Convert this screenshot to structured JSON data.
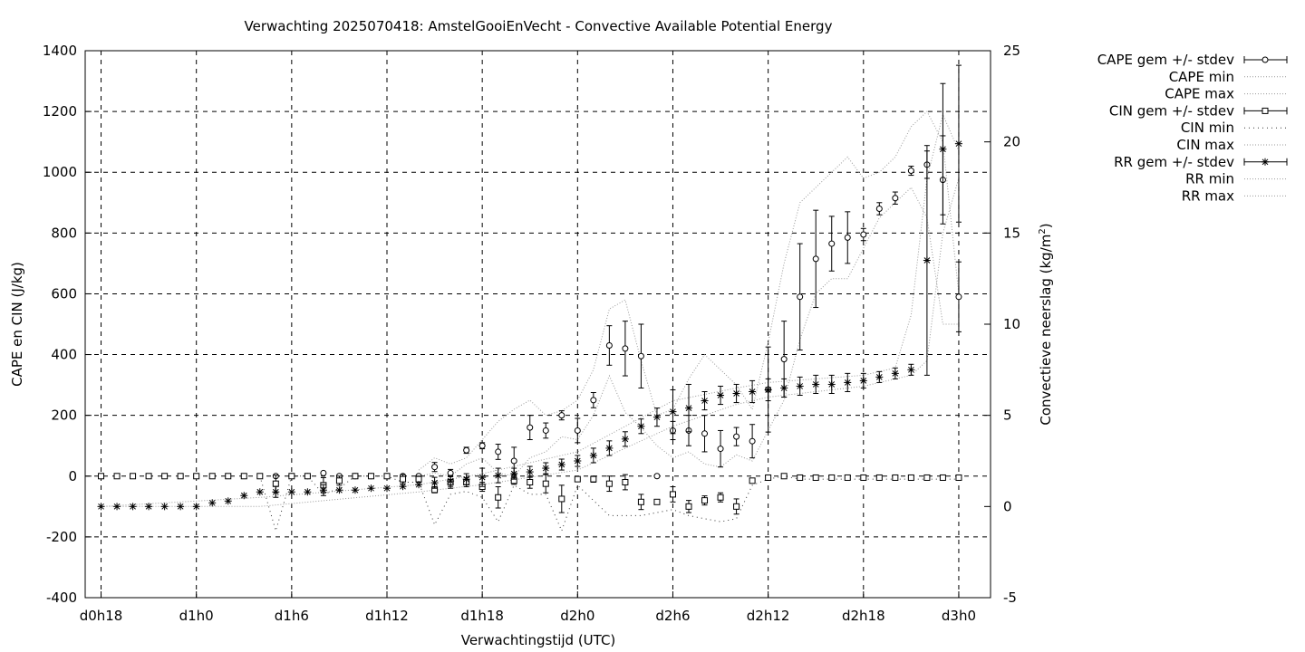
{
  "chart_data": {
    "type": "scatter",
    "title": "Verwachting 2025070418: AmstelGooiEnVecht - Convective Available Potential Energy",
    "xlabel": "Verwachtingstijd (UTC)",
    "ylabel": "CAPE en CIN (J/kg)",
    "y2label_main": "Convectieve neerslag (kg/m",
    "y2label_sup": "2",
    "y2label_end": ")",
    "xlim": [
      -1,
      56
    ],
    "ylim": [
      -400,
      1400
    ],
    "y2lim": [
      -5,
      25
    ],
    "grid": true,
    "legend_placement": "outside-right-top",
    "x_ticks": [
      {
        "x": 0,
        "label": "d0h18"
      },
      {
        "x": 6,
        "label": "d1h0"
      },
      {
        "x": 12,
        "label": "d1h6"
      },
      {
        "x": 18,
        "label": "d1h12"
      },
      {
        "x": 24,
        "label": "d1h18"
      },
      {
        "x": 30,
        "label": "d2h0"
      },
      {
        "x": 36,
        "label": "d2h6"
      },
      {
        "x": 42,
        "label": "d2h12"
      },
      {
        "x": 48,
        "label": "d2h18"
      },
      {
        "x": 54,
        "label": "d3h0"
      }
    ],
    "y_ticks": [
      "-400",
      "-200",
      "0",
      "200",
      "400",
      "600",
      "800",
      "1000",
      "1200",
      "1400"
    ],
    "y2_ticks": [
      "-5",
      "0",
      "5",
      "10",
      "15",
      "20",
      "25"
    ],
    "legend": [
      {
        "label": "CAPE gem +/- stdev",
        "style": "errorbar",
        "marker": "circle"
      },
      {
        "label": "CAPE min",
        "style": "dotted"
      },
      {
        "label": "CAPE max",
        "style": "dotted"
      },
      {
        "label": "CIN gem +/- stdev",
        "style": "errorbar",
        "marker": "square"
      },
      {
        "label": "CIN min",
        "style": "dotted-sparse"
      },
      {
        "label": "CIN max",
        "style": "dotted"
      },
      {
        "label": "RR gem +/- stdev",
        "style": "errorbar",
        "marker": "star"
      },
      {
        "label": "RR min",
        "style": "dotted"
      },
      {
        "label": "RR max",
        "style": "dotted"
      }
    ],
    "series": [
      {
        "name": "CAPE gem +/- stdev",
        "axis": "y",
        "marker": "circle",
        "x": [
          11,
          12,
          13,
          14,
          15,
          16,
          17,
          18,
          19,
          20,
          21,
          22,
          23,
          24,
          25,
          26,
          27,
          28,
          29,
          30,
          31,
          32,
          33,
          34,
          35,
          36,
          37,
          38,
          39,
          40,
          41,
          42,
          43,
          44,
          45,
          46,
          47,
          48,
          49,
          50,
          51,
          52,
          53,
          54
        ],
        "y": [
          0,
          0,
          0,
          10,
          0,
          0,
          0,
          0,
          0,
          0,
          30,
          10,
          85,
          100,
          80,
          50,
          160,
          150,
          200,
          150,
          250,
          430,
          420,
          395,
          0,
          150,
          150,
          140,
          90,
          130,
          115,
          285,
          385,
          590,
          715,
          765,
          785,
          795,
          880,
          915,
          1005,
          1025,
          975,
          590
        ],
        "err": [
          0,
          0,
          0,
          3,
          0,
          0,
          0,
          0,
          0,
          0,
          15,
          12,
          10,
          10,
          25,
          45,
          40,
          25,
          15,
          40,
          25,
          65,
          90,
          105,
          0,
          30,
          50,
          60,
          60,
          30,
          55,
          140,
          125,
          175,
          160,
          90,
          85,
          20,
          20,
          20,
          15,
          45,
          145,
          115
        ]
      },
      {
        "name": "CIN gem +/- stdev",
        "axis": "y",
        "marker": "square",
        "x": [
          0,
          1,
          2,
          3,
          4,
          5,
          6,
          7,
          8,
          9,
          10,
          11,
          12,
          13,
          14,
          15,
          16,
          17,
          18,
          19,
          20,
          21,
          22,
          23,
          24,
          25,
          26,
          27,
          28,
          29,
          30,
          31,
          32,
          33,
          34,
          35,
          36,
          37,
          38,
          39,
          40,
          41,
          42,
          43,
          44,
          45,
          46,
          47,
          48,
          49,
          50,
          51,
          52,
          53,
          54
        ],
        "y": [
          0,
          0,
          0,
          0,
          0,
          0,
          0,
          0,
          0,
          0,
          0,
          -25,
          0,
          0,
          -30,
          -15,
          0,
          0,
          0,
          -10,
          -10,
          -45,
          -20,
          -20,
          -35,
          -70,
          -15,
          -20,
          -25,
          -75,
          -10,
          -10,
          -25,
          -20,
          -85,
          -85,
          -60,
          -100,
          -80,
          -70,
          -100,
          -15,
          -5,
          0,
          -5,
          -5,
          -5,
          -5,
          -5,
          -5,
          -5,
          -5,
          -5,
          -5,
          -5
        ],
        "err": [
          0,
          0,
          0,
          0,
          0,
          0,
          0,
          0,
          0,
          0,
          0,
          28,
          0,
          0,
          25,
          15,
          0,
          0,
          0,
          15,
          10,
          10,
          20,
          15,
          15,
          35,
          12,
          20,
          30,
          45,
          8,
          10,
          25,
          25,
          25,
          0,
          25,
          20,
          15,
          15,
          25,
          8,
          2,
          2,
          2,
          2,
          2,
          2,
          2,
          2,
          2,
          2,
          2,
          2,
          2
        ]
      },
      {
        "name": "RR gem +/- stdev",
        "axis": "y2",
        "marker": "star",
        "x": [
          0,
          1,
          2,
          3,
          4,
          5,
          6,
          7,
          8,
          9,
          10,
          11,
          12,
          13,
          14,
          15,
          16,
          17,
          18,
          19,
          20,
          21,
          22,
          23,
          24,
          25,
          26,
          27,
          28,
          29,
          30,
          31,
          32,
          33,
          34,
          35,
          36,
          37,
          38,
          39,
          40,
          41,
          42,
          43,
          44,
          45,
          46,
          47,
          48,
          49,
          50,
          51,
          52,
          53,
          54
        ],
        "y": [
          0,
          0,
          0,
          0,
          0,
          0,
          0,
          0.2,
          0.3,
          0.6,
          0.8,
          0.8,
          0.8,
          0.8,
          0.9,
          0.9,
          0.9,
          1.0,
          1.0,
          1.1,
          1.2,
          1.3,
          1.4,
          1.5,
          1.6,
          1.7,
          1.8,
          1.9,
          2.1,
          2.3,
          2.5,
          2.8,
          3.2,
          3.7,
          4.4,
          4.9,
          5.2,
          5.4,
          5.8,
          6.1,
          6.2,
          6.3,
          6.4,
          6.5,
          6.6,
          6.7,
          6.7,
          6.8,
          6.9,
          7.1,
          7.3,
          7.5,
          13.5,
          19.6,
          19.9
        ],
        "err": [
          0,
          0,
          0,
          0,
          0,
          0,
          0,
          0,
          0,
          0,
          0,
          0.3,
          0,
          0,
          0.3,
          0,
          0,
          0,
          0,
          0,
          0,
          0.3,
          0.3,
          0.3,
          0.5,
          0.4,
          0.3,
          0.3,
          0.3,
          0.3,
          0.3,
          0.4,
          0.4,
          0.4,
          0.4,
          0.5,
          1.2,
          1.3,
          0.5,
          0.5,
          0.5,
          0.6,
          0.6,
          0.5,
          0.5,
          0.5,
          0.5,
          0.5,
          0.4,
          0.3,
          0.3,
          0.3,
          6.3,
          3.6,
          4.3
        ]
      }
    ],
    "bands": [
      {
        "name": "CAPE max",
        "axis": "y",
        "x": [
          20,
          21,
          22,
          23,
          24,
          25,
          26,
          27,
          28,
          29,
          30,
          31,
          32,
          33,
          34,
          35,
          36,
          37,
          38,
          39,
          40,
          41,
          42,
          43,
          44,
          45,
          46,
          47,
          48,
          49,
          50,
          51,
          52,
          53,
          54
        ],
        "y": [
          20,
          60,
          40,
          60,
          120,
          180,
          220,
          250,
          200,
          215,
          250,
          350,
          550,
          580,
          380,
          200,
          220,
          320,
          400,
          350,
          300,
          220,
          440,
          700,
          900,
          950,
          1000,
          1050,
          980,
          1000,
          1050,
          1150,
          1200,
          1100,
          600
        ]
      },
      {
        "name": "CAPE min",
        "axis": "y",
        "x": [
          20,
          21,
          22,
          23,
          24,
          25,
          26,
          27,
          28,
          29,
          30,
          31,
          32,
          33,
          34,
          35,
          36,
          37,
          38,
          39,
          40,
          41,
          42,
          43,
          44,
          45,
          46,
          47,
          48,
          49,
          50,
          51,
          52,
          53,
          54
        ],
        "y": [
          0,
          10,
          0,
          40,
          60,
          10,
          0,
          60,
          80,
          130,
          120,
          200,
          330,
          210,
          160,
          100,
          60,
          80,
          40,
          30,
          70,
          50,
          150,
          250,
          450,
          600,
          650,
          650,
          750,
          850,
          900,
          950,
          850,
          500,
          500
        ]
      },
      {
        "name": "CIN min",
        "axis": "y",
        "x": [
          10,
          11,
          12,
          13,
          14,
          15,
          16,
          17,
          18,
          19,
          20,
          21,
          22,
          23,
          24,
          25,
          26,
          27,
          28,
          29,
          30,
          31,
          32,
          33,
          34,
          35,
          36,
          37,
          38,
          39,
          40,
          41,
          42,
          43,
          44,
          45,
          46,
          47,
          48,
          49,
          50,
          51,
          52,
          53,
          54
        ],
        "y": [
          0,
          -180,
          0,
          0,
          -60,
          -40,
          0,
          0,
          0,
          -20,
          -20,
          -160,
          -60,
          -50,
          -70,
          -150,
          -30,
          -60,
          -60,
          -180,
          -30,
          -80,
          -130,
          -130,
          -130,
          -120,
          -110,
          -130,
          -140,
          -150,
          -140,
          -30,
          -10,
          0,
          -10,
          -10,
          -10,
          -10,
          -10,
          -10,
          -10,
          -10,
          -10,
          -10,
          -10
        ]
      },
      {
        "name": "RR max",
        "axis": "y2",
        "x": [
          0,
          10,
          20,
          24,
          30,
          36,
          40,
          42,
          48,
          50,
          51,
          52,
          53,
          54
        ],
        "y": [
          0,
          0.5,
          1.2,
          1.8,
          3.0,
          5.8,
          6.5,
          6.8,
          7.2,
          7.6,
          10.5,
          18.0,
          21.5,
          19.5
        ]
      },
      {
        "name": "RR min",
        "axis": "y2",
        "x": [
          0,
          10,
          20,
          24,
          30,
          36,
          40,
          42,
          48,
          50,
          51,
          52,
          53,
          54
        ],
        "y": [
          0,
          0,
          0.8,
          1.2,
          2.0,
          4.4,
          5.6,
          6.0,
          6.6,
          7.0,
          7.2,
          8.0,
          15.0,
          18.0
        ]
      }
    ]
  }
}
